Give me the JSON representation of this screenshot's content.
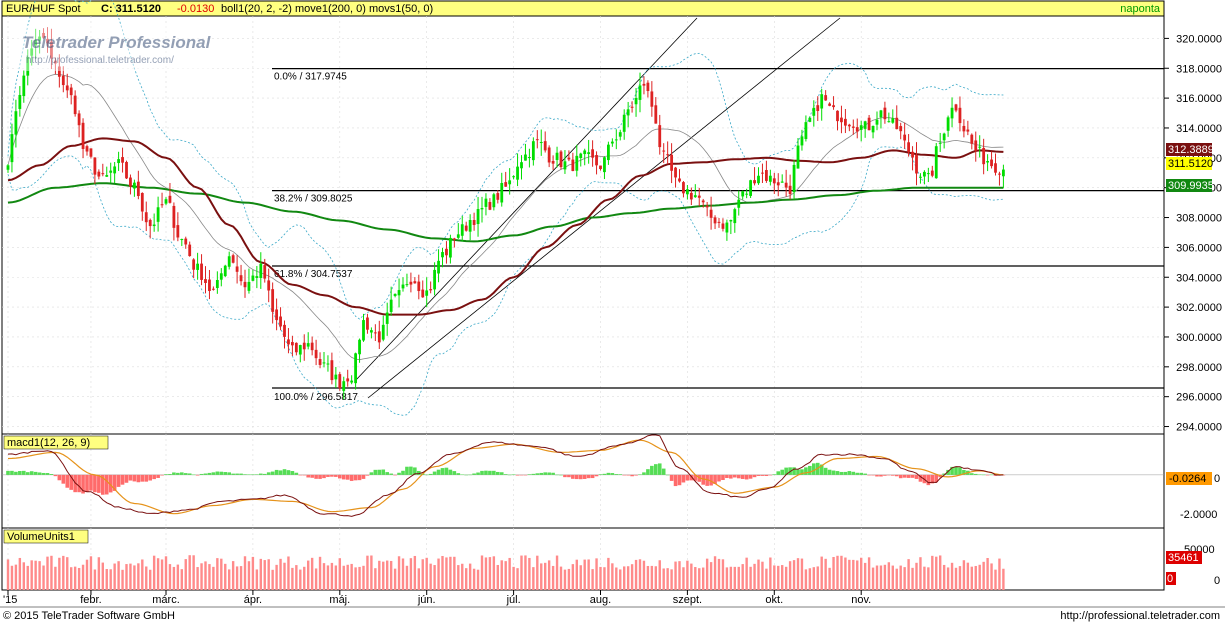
{
  "header": {
    "symbol": "EUR/HUF Spot",
    "close_label": "C: 311.5120",
    "change": "-0.0130",
    "indicators": "boll1(20, 2, -2) move1(200, 0) movs1(50, 0)",
    "period": "naponta"
  },
  "watermark": {
    "title": "Teletrader Professional",
    "url": "http://professional.teletrader.com/"
  },
  "colors": {
    "background": "#ffffff",
    "title_bar": "#ffff80",
    "up_candle": "#00dd00",
    "down_candle": "#dd2222",
    "ma200": "#7a1010",
    "ma50": "#118811",
    "macd_pos": "#55dd55",
    "macd_neg": "#ff6b6b",
    "signal": "#e6931b",
    "volume": "#ff8a8a"
  },
  "price_panel": {
    "y_ticks": [
      "320.0000",
      "318.0000",
      "316.0000",
      "314.0000",
      "312.0000",
      "310.0000",
      "308.0000",
      "306.0000",
      "304.0000",
      "302.0000",
      "300.0000",
      "298.0000",
      "296.0000",
      "294.0000"
    ],
    "tags": {
      "ma200": "312.3889",
      "last": "311.5120",
      "ma50": "309.9935"
    },
    "fib_levels": [
      {
        "label": "0.0% / 317.9745",
        "value": 317.9745
      },
      {
        "label": "38.2% / 309.8025",
        "value": 309.8025
      },
      {
        "label": "61.8% / 304.7537",
        "value": 304.7537
      },
      {
        "label": "100.0% / 296.5817",
        "value": 296.5817
      }
    ]
  },
  "macd_panel": {
    "title": "macd1(12, 26, 9)",
    "y_ticks": [
      "0",
      "-2.0000"
    ],
    "tag": "-0.0264"
  },
  "volume_panel": {
    "title": "VolumeUnits1",
    "y_ticks": [
      "50000",
      "0"
    ],
    "tag": "35461",
    "tag_zero": "0"
  },
  "x_labels": [
    "'15",
    "febr.",
    "márc.",
    "ápr.",
    "máj.",
    "jún.",
    "júl.",
    "aug.",
    "szept.",
    "okt.",
    "nov."
  ],
  "footer": {
    "copyright": "© 2015 TeleTrader Software GmbH",
    "url": "http://professional.teletrader.com"
  },
  "chart_data": {
    "type": "candlestick",
    "title": "EUR/HUF Spot",
    "ylim": [
      293.5,
      321.5
    ],
    "anchors_close": [
      [
        0,
        312.0
      ],
      [
        3,
        316.5
      ],
      [
        6,
        319.5
      ],
      [
        9,
        320.0
      ],
      [
        12,
        318.0
      ],
      [
        16,
        316.0
      ],
      [
        20,
        312.0
      ],
      [
        24,
        310.5
      ],
      [
        28,
        311.5
      ],
      [
        32,
        310.0
      ],
      [
        36,
        307.5
      ],
      [
        40,
        309.0
      ],
      [
        44,
        306.5
      ],
      [
        48,
        304.5
      ],
      [
        52,
        303.0
      ],
      [
        56,
        305.5
      ],
      [
        60,
        303.5
      ],
      [
        64,
        304.5
      ],
      [
        68,
        301.0
      ],
      [
        72,
        299.0
      ],
      [
        76,
        299.5
      ],
      [
        80,
        298.0
      ],
      [
        84,
        297.0
      ],
      [
        87,
        297.5
      ],
      [
        90,
        301.0
      ],
      [
        94,
        300.0
      ],
      [
        98,
        302.5
      ],
      [
        102,
        304.0
      ],
      [
        106,
        303.0
      ],
      [
        110,
        305.5
      ],
      [
        114,
        307.0
      ],
      [
        118,
        308.0
      ],
      [
        122,
        309.0
      ],
      [
        126,
        310.0
      ],
      [
        130,
        312.0
      ],
      [
        134,
        313.0
      ],
      [
        138,
        312.0
      ],
      [
        142,
        311.5
      ],
      [
        146,
        312.0
      ],
      [
        150,
        311.5
      ],
      [
        154,
        313.5
      ],
      [
        158,
        315.5
      ],
      [
        161,
        317.0
      ],
      [
        163,
        315.5
      ],
      [
        166,
        312.0
      ],
      [
        170,
        310.0
      ],
      [
        174,
        309.5
      ],
      [
        178,
        308.0
      ],
      [
        182,
        307.5
      ],
      [
        186,
        309.5
      ],
      [
        190,
        311.0
      ],
      [
        194,
        310.5
      ],
      [
        198,
        310.0
      ],
      [
        200,
        312.5
      ],
      [
        203,
        314.5
      ],
      [
        206,
        316.0
      ],
      [
        209,
        315.0
      ],
      [
        213,
        314.5
      ],
      [
        217,
        314.0
      ],
      [
        221,
        315.0
      ],
      [
        225,
        314.0
      ],
      [
        228,
        312.5
      ],
      [
        231,
        311.0
      ],
      [
        233,
        310.5
      ],
      [
        236,
        313.0
      ],
      [
        238,
        315.0
      ],
      [
        240,
        315.5
      ],
      [
        242,
        314.0
      ],
      [
        245,
        312.5
      ],
      [
        247,
        312.0
      ],
      [
        250,
        311.5
      ],
      [
        252,
        311.3
      ]
    ],
    "ma200_anchors": [
      [
        0,
        310.5
      ],
      [
        8,
        311.5
      ],
      [
        16,
        312.8
      ],
      [
        24,
        313.3
      ],
      [
        32,
        313.1
      ],
      [
        40,
        312.0
      ],
      [
        48,
        310.0
      ],
      [
        56,
        307.5
      ],
      [
        64,
        305.0
      ],
      [
        72,
        303.5
      ],
      [
        80,
        302.8
      ],
      [
        88,
        302.0
      ],
      [
        96,
        301.5
      ],
      [
        104,
        301.5
      ],
      [
        112,
        301.8
      ],
      [
        120,
        302.5
      ],
      [
        128,
        304.0
      ],
      [
        136,
        306.0
      ],
      [
        144,
        307.5
      ],
      [
        152,
        309.2
      ],
      [
        160,
        310.8
      ],
      [
        168,
        311.6
      ],
      [
        176,
        311.7
      ],
      [
        184,
        311.9
      ],
      [
        192,
        312.0
      ],
      [
        200,
        311.8
      ],
      [
        208,
        311.7
      ],
      [
        216,
        312.0
      ],
      [
        224,
        312.5
      ],
      [
        232,
        312.2
      ],
      [
        240,
        312.0
      ],
      [
        246,
        312.5
      ],
      [
        252,
        312.4
      ]
    ],
    "ma50_anchors": [
      [
        0,
        309.0
      ],
      [
        12,
        310.0
      ],
      [
        24,
        310.3
      ],
      [
        36,
        310.0
      ],
      [
        48,
        309.6
      ],
      [
        60,
        309.0
      ],
      [
        72,
        308.4
      ],
      [
        84,
        307.8
      ],
      [
        96,
        307.2
      ],
      [
        108,
        306.6
      ],
      [
        118,
        306.4
      ],
      [
        128,
        306.8
      ],
      [
        138,
        307.4
      ],
      [
        148,
        308.0
      ],
      [
        158,
        308.3
      ],
      [
        168,
        308.6
      ],
      [
        178,
        308.8
      ],
      [
        188,
        309.0
      ],
      [
        198,
        309.2
      ],
      [
        210,
        309.5
      ],
      [
        220,
        309.8
      ],
      [
        230,
        310.0
      ],
      [
        240,
        310.0
      ],
      [
        252,
        310.0
      ]
    ],
    "macd_anchors": [
      [
        0,
        1.0
      ],
      [
        10,
        1.2
      ],
      [
        20,
        -0.8
      ],
      [
        28,
        -1.6
      ],
      [
        36,
        -1.9
      ],
      [
        46,
        -1.7
      ],
      [
        54,
        -1.3
      ],
      [
        62,
        -1.2
      ],
      [
        70,
        -1.0
      ],
      [
        80,
        -1.9
      ],
      [
        88,
        -2.0
      ],
      [
        96,
        -1.0
      ],
      [
        104,
        0.1
      ],
      [
        112,
        1.0
      ],
      [
        122,
        1.6
      ],
      [
        134,
        1.4
      ],
      [
        144,
        0.9
      ],
      [
        156,
        1.5
      ],
      [
        164,
        2.0
      ],
      [
        170,
        0.3
      ],
      [
        178,
        -0.9
      ],
      [
        186,
        -1.1
      ],
      [
        192,
        -0.7
      ],
      [
        200,
        0.3
      ],
      [
        206,
        1.0
      ],
      [
        214,
        1.0
      ],
      [
        222,
        0.8
      ],
      [
        228,
        0.2
      ],
      [
        234,
        -0.4
      ],
      [
        240,
        0.4
      ],
      [
        246,
        0.2
      ],
      [
        252,
        -0.03
      ]
    ],
    "signal_anchors": [
      [
        0,
        0.8
      ],
      [
        12,
        1.1
      ],
      [
        22,
        0.0
      ],
      [
        32,
        -1.4
      ],
      [
        42,
        -1.9
      ],
      [
        52,
        -1.5
      ],
      [
        62,
        -1.2
      ],
      [
        72,
        -1.3
      ],
      [
        82,
        -1.8
      ],
      [
        92,
        -1.6
      ],
      [
        100,
        -0.7
      ],
      [
        108,
        0.4
      ],
      [
        118,
        1.3
      ],
      [
        128,
        1.5
      ],
      [
        140,
        1.1
      ],
      [
        150,
        1.2
      ],
      [
        160,
        1.7
      ],
      [
        168,
        1.1
      ],
      [
        176,
        -0.2
      ],
      [
        184,
        -0.9
      ],
      [
        194,
        -0.6
      ],
      [
        202,
        0.1
      ],
      [
        210,
        0.8
      ],
      [
        220,
        0.9
      ],
      [
        230,
        0.3
      ],
      [
        238,
        -0.1
      ],
      [
        246,
        0.2
      ],
      [
        252,
        0.0
      ]
    ],
    "volume_max": 60000,
    "volume_typical": 35461
  }
}
